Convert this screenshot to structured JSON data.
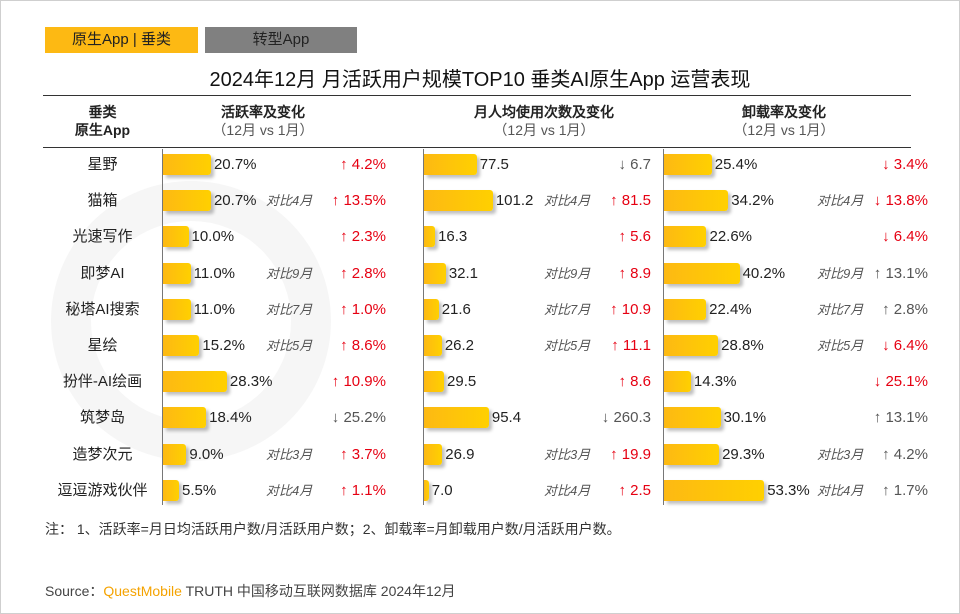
{
  "tabs": [
    {
      "label": "原生App | 垂类",
      "active": true
    },
    {
      "label": "转型App",
      "active": false
    }
  ],
  "title": "2024年12月 月活跃用户规模TOP10 垂类AI原生App 运营表现",
  "watermark": "QUESTMOBILE",
  "headers": {
    "app": [
      "垂类",
      "原生App"
    ],
    "columns": [
      {
        "title": "活跃率及变化",
        "subtitle": "（12月 vs 1月）"
      },
      {
        "title": "月人均使用次数及变化",
        "subtitle": "（12月 vs 1月）"
      },
      {
        "title": "卸载率及变化",
        "subtitle": "（12月 vs 1月）"
      }
    ]
  },
  "colors": {
    "bar": "#FDB913",
    "positive": "#E60012",
    "negative": "#555555"
  },
  "chart_data": {
    "type": "table",
    "rows": [
      {
        "app": "星野",
        "active": {
          "value": "20.7%",
          "num": 20.7,
          "note": "",
          "change": "4.2%",
          "dir": "up",
          "good": true
        },
        "usage": {
          "value": "77.5",
          "num": 77.5,
          "note": "",
          "change": "6.7",
          "dir": "down",
          "good": false
        },
        "uninstall": {
          "value": "25.4%",
          "num": 25.4,
          "note": "",
          "change": "3.4%",
          "dir": "down",
          "good": true
        }
      },
      {
        "app": "猫箱",
        "active": {
          "value": "20.7%",
          "num": 20.7,
          "note": "对比4月",
          "change": "13.5%",
          "dir": "up",
          "good": true
        },
        "usage": {
          "value": "101.2",
          "num": 101.2,
          "note": "对比4月",
          "change": "81.5",
          "dir": "up",
          "good": true
        },
        "uninstall": {
          "value": "34.2%",
          "num": 34.2,
          "note": "对比4月",
          "change": "13.8%",
          "dir": "down",
          "good": true
        }
      },
      {
        "app": "光速写作",
        "active": {
          "value": "10.0%",
          "num": 10.0,
          "note": "",
          "change": "2.3%",
          "dir": "up",
          "good": true
        },
        "usage": {
          "value": "16.3",
          "num": 16.3,
          "note": "",
          "change": "5.6",
          "dir": "up",
          "good": true
        },
        "uninstall": {
          "value": "22.6%",
          "num": 22.6,
          "note": "",
          "change": "6.4%",
          "dir": "down",
          "good": true
        }
      },
      {
        "app": "即梦AI",
        "active": {
          "value": "11.0%",
          "num": 11.0,
          "note": "对比9月",
          "change": "2.8%",
          "dir": "up",
          "good": true
        },
        "usage": {
          "value": "32.1",
          "num": 32.1,
          "note": "对比9月",
          "change": "8.9",
          "dir": "up",
          "good": true
        },
        "uninstall": {
          "value": "40.2%",
          "num": 40.2,
          "note": "对比9月",
          "change": "13.1%",
          "dir": "up",
          "good": false
        }
      },
      {
        "app": "秘塔AI搜索",
        "active": {
          "value": "11.0%",
          "num": 11.0,
          "note": "对比7月",
          "change": "1.0%",
          "dir": "up",
          "good": true
        },
        "usage": {
          "value": "21.6",
          "num": 21.6,
          "note": "对比7月",
          "change": "10.9",
          "dir": "up",
          "good": true
        },
        "uninstall": {
          "value": "22.4%",
          "num": 22.4,
          "note": "对比7月",
          "change": "2.8%",
          "dir": "up",
          "good": false
        }
      },
      {
        "app": "星绘",
        "active": {
          "value": "15.2%",
          "num": 15.2,
          "note": "对比5月",
          "change": "8.6%",
          "dir": "up",
          "good": true
        },
        "usage": {
          "value": "26.2",
          "num": 26.2,
          "note": "对比5月",
          "change": "11.1",
          "dir": "up",
          "good": true
        },
        "uninstall": {
          "value": "28.8%",
          "num": 28.8,
          "note": "对比5月",
          "change": "6.4%",
          "dir": "down",
          "good": true
        }
      },
      {
        "app": "扮伴-AI绘画",
        "active": {
          "value": "28.3%",
          "num": 28.3,
          "note": "",
          "change": "10.9%",
          "dir": "up",
          "good": true
        },
        "usage": {
          "value": "29.5",
          "num": 29.5,
          "note": "",
          "change": "8.6",
          "dir": "up",
          "good": true
        },
        "uninstall": {
          "value": "14.3%",
          "num": 14.3,
          "note": "",
          "change": "25.1%",
          "dir": "down",
          "good": true
        }
      },
      {
        "app": "筑梦岛",
        "active": {
          "value": "18.4%",
          "num": 18.4,
          "note": "",
          "change": "25.2%",
          "dir": "down",
          "good": false
        },
        "usage": {
          "value": "95.4",
          "num": 95.4,
          "note": "",
          "change": "260.3",
          "dir": "down",
          "good": false
        },
        "uninstall": {
          "value": "30.1%",
          "num": 30.1,
          "note": "",
          "change": "13.1%",
          "dir": "up",
          "good": false
        }
      },
      {
        "app": "造梦次元",
        "active": {
          "value": "9.0%",
          "num": 9.0,
          "note": "对比3月",
          "change": "3.7%",
          "dir": "up",
          "good": true
        },
        "usage": {
          "value": "26.9",
          "num": 26.9,
          "note": "对比3月",
          "change": "19.9",
          "dir": "up",
          "good": true
        },
        "uninstall": {
          "value": "29.3%",
          "num": 29.3,
          "note": "对比3月",
          "change": "4.2%",
          "dir": "up",
          "good": false
        }
      },
      {
        "app": "逗逗游戏伙伴",
        "active": {
          "value": "5.5%",
          "num": 5.5,
          "note": "对比4月",
          "change": "1.1%",
          "dir": "up",
          "good": true
        },
        "usage": {
          "value": "7.0",
          "num": 7.0,
          "note": "对比4月",
          "change": "2.5",
          "dir": "up",
          "good": true
        },
        "uninstall": {
          "value": "53.3%",
          "num": 53.3,
          "note": "对比4月",
          "change": "1.7%",
          "dir": "up",
          "good": false
        }
      }
    ]
  },
  "footnote": "注：  1、活跃率=月日均活跃用户数/月活跃用户数；2、卸载率=月卸载用户数/月活跃用户数。",
  "source": {
    "label": "Source：",
    "brand": "QuestMobile",
    "text": " TRUTH 中国移动互联网数据库 2024年12月"
  }
}
